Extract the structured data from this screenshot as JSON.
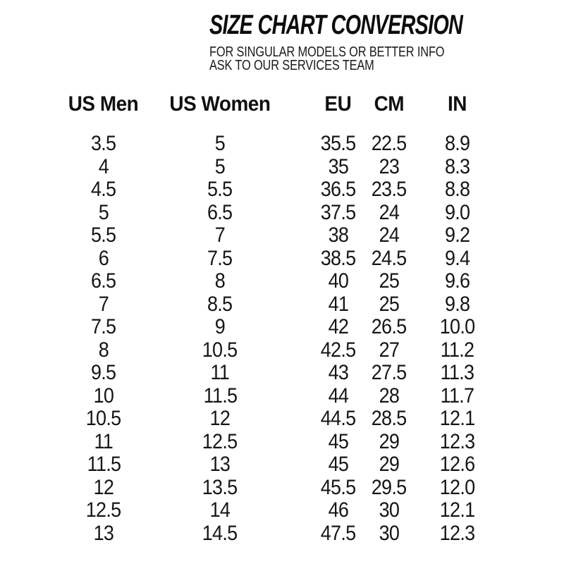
{
  "colors": {
    "background": "#ffffff",
    "title_text": "#0c0c0c",
    "body_text": "#161616"
  },
  "header": {
    "title": "SIZE CHART CONVERSION",
    "subtitle_line1": "FOR SINGULAR MODELS OR BETTER INFO",
    "subtitle_line2": "ASK TO OUR SERVICES TEAM"
  },
  "chart_data": {
    "type": "table",
    "title": "SIZE CHART CONVERSION",
    "columns": [
      "US Men",
      "US Women",
      "EU",
      "CM",
      "IN"
    ],
    "rows": [
      [
        "3.5",
        "5",
        "35.5",
        "22.5",
        "8.9"
      ],
      [
        "4",
        "5",
        "35",
        "23",
        "8.3"
      ],
      [
        "4.5",
        "5.5",
        "36.5",
        "23.5",
        "8.8"
      ],
      [
        "5",
        "6.5",
        "37.5",
        "24",
        "9.0"
      ],
      [
        "5.5",
        "7",
        "38",
        "24",
        "9.2"
      ],
      [
        "6",
        "7.5",
        "38.5",
        "24.5",
        "9.4"
      ],
      [
        "6.5",
        "8",
        "40",
        "25",
        "9.6"
      ],
      [
        "7",
        "8.5",
        "41",
        "25",
        "9.8"
      ],
      [
        "7.5",
        "9",
        "42",
        "26.5",
        "10.0"
      ],
      [
        "8",
        "10.5",
        "42.5",
        "27",
        "11.2"
      ],
      [
        "9.5",
        "11",
        "43",
        "27.5",
        "11.3"
      ],
      [
        "10",
        "11.5",
        "44",
        "28",
        "11.7"
      ],
      [
        "10.5",
        "12",
        "44.5",
        "28.5",
        "12.1"
      ],
      [
        "11",
        "12.5",
        "45",
        "29",
        "12.3"
      ],
      [
        "11.5",
        "13",
        "45",
        "29",
        "12.6"
      ],
      [
        "12",
        "13.5",
        "45.5",
        "29.5",
        "12.0"
      ],
      [
        "12.5",
        "14",
        "46",
        "30",
        "12.1"
      ],
      [
        "13",
        "14.5",
        "47.5",
        "30",
        "12.3"
      ]
    ]
  }
}
